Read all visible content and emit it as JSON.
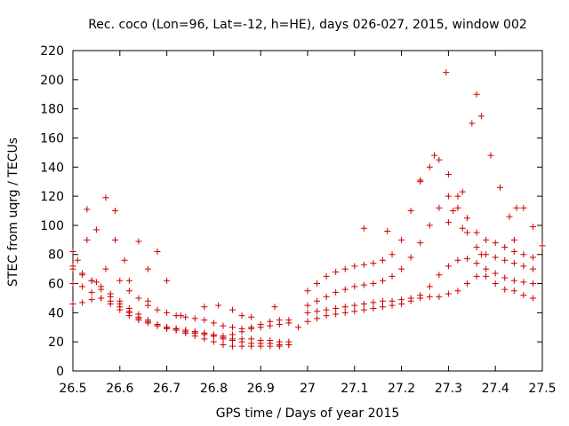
{
  "chart_data": {
    "type": "scatter",
    "title": "Rec. coco (Lon=96, Lat=-12, h=HE), days 026-027, 2015, window 002",
    "xlabel": "GPS time / Days of year 2015",
    "ylabel": "STEC from uqrg / TECUs",
    "xlim": [
      26.5,
      27.5
    ],
    "ylim": [
      0,
      220
    ],
    "xticks": [
      "26.5",
      "26.6",
      "26.7",
      "26.8",
      "26.9",
      "27",
      "27.1",
      "27.2",
      "27.3",
      "27.4",
      "27.5"
    ],
    "yticks": [
      "0",
      "20",
      "40",
      "60",
      "80",
      "100",
      "120",
      "140",
      "160",
      "180",
      "200",
      "220"
    ],
    "grid": false,
    "legend": "none",
    "marker": "plus",
    "color": "#cc0000",
    "points": [
      [
        26.5,
        46
      ],
      [
        26.52,
        47
      ],
      [
        26.54,
        49
      ],
      [
        26.56,
        50
      ],
      [
        26.58,
        48
      ],
      [
        26.6,
        44
      ],
      [
        26.62,
        40
      ],
      [
        26.64,
        36
      ],
      [
        26.66,
        33
      ],
      [
        26.68,
        31
      ],
      [
        26.7,
        29
      ],
      [
        26.72,
        28
      ],
      [
        26.74,
        27
      ],
      [
        26.76,
        26
      ],
      [
        26.78,
        25
      ],
      [
        26.8,
        24
      ],
      [
        26.82,
        24
      ],
      [
        26.84,
        25
      ],
      [
        26.86,
        27
      ],
      [
        26.88,
        29
      ],
      [
        26.9,
        30
      ],
      [
        26.92,
        31
      ],
      [
        26.94,
        32
      ],
      [
        26.96,
        33
      ],
      [
        26.5,
        60
      ],
      [
        26.52,
        58
      ],
      [
        26.54,
        54
      ],
      [
        26.56,
        50
      ],
      [
        26.58,
        46
      ],
      [
        26.6,
        42
      ],
      [
        26.62,
        38
      ],
      [
        26.64,
        35
      ],
      [
        26.66,
        33
      ],
      [
        26.68,
        31
      ],
      [
        26.7,
        30
      ],
      [
        26.72,
        29
      ],
      [
        26.74,
        28
      ],
      [
        26.76,
        27
      ],
      [
        26.78,
        26
      ],
      [
        26.8,
        25
      ],
      [
        26.82,
        23
      ],
      [
        26.84,
        22
      ],
      [
        26.86,
        22
      ],
      [
        26.88,
        22
      ],
      [
        26.9,
        21
      ],
      [
        26.92,
        21
      ],
      [
        26.94,
        20
      ],
      [
        26.96,
        20
      ],
      [
        26.5,
        70
      ],
      [
        26.52,
        66
      ],
      [
        26.54,
        62
      ],
      [
        26.56,
        56
      ],
      [
        26.58,
        51
      ],
      [
        26.6,
        46
      ],
      [
        26.62,
        41
      ],
      [
        26.64,
        37
      ],
      [
        26.66,
        34
      ],
      [
        26.68,
        32
      ],
      [
        26.7,
        30
      ],
      [
        26.72,
        28
      ],
      [
        26.74,
        26
      ],
      [
        26.76,
        24
      ],
      [
        26.78,
        22
      ],
      [
        26.8,
        20
      ],
      [
        26.82,
        18
      ],
      [
        26.84,
        17
      ],
      [
        26.86,
        17
      ],
      [
        26.88,
        17
      ],
      [
        26.9,
        17
      ],
      [
        26.92,
        17
      ],
      [
        26.94,
        17
      ],
      [
        26.96,
        18
      ],
      [
        26.5,
        72
      ],
      [
        26.52,
        67
      ],
      [
        26.54,
        62
      ],
      [
        26.56,
        58
      ],
      [
        26.58,
        53
      ],
      [
        26.6,
        48
      ],
      [
        26.62,
        43
      ],
      [
        26.64,
        39
      ],
      [
        26.66,
        35
      ],
      [
        26.68,
        32
      ],
      [
        26.7,
        30
      ],
      [
        26.72,
        29
      ],
      [
        26.74,
        28
      ],
      [
        26.76,
        27
      ],
      [
        26.78,
        26
      ],
      [
        26.8,
        24
      ],
      [
        26.82,
        22
      ],
      [
        26.84,
        21
      ],
      [
        26.86,
        20
      ],
      [
        26.88,
        19
      ],
      [
        26.9,
        19
      ],
      [
        26.92,
        19
      ],
      [
        26.94,
        18
      ],
      [
        26.96,
        18
      ],
      [
        26.6,
        62
      ],
      [
        26.62,
        55
      ],
      [
        26.64,
        50
      ],
      [
        26.66,
        45
      ],
      [
        26.68,
        42
      ],
      [
        26.7,
        40
      ],
      [
        26.72,
        38
      ],
      [
        26.74,
        37
      ],
      [
        26.76,
        36
      ],
      [
        26.78,
        35
      ],
      [
        26.8,
        33
      ],
      [
        26.82,
        31
      ],
      [
        26.84,
        30
      ],
      [
        26.86,
        29
      ],
      [
        26.88,
        30
      ],
      [
        26.9,
        32
      ],
      [
        26.92,
        34
      ],
      [
        26.94,
        35
      ],
      [
        26.96,
        35
      ],
      [
        26.5,
        82
      ],
      [
        26.53,
        111
      ],
      [
        26.55,
        97
      ],
      [
        26.57,
        119
      ],
      [
        26.59,
        110
      ],
      [
        26.62,
        62
      ],
      [
        26.66,
        48
      ],
      [
        26.68,
        82
      ],
      [
        26.7,
        62
      ],
      [
        26.73,
        38
      ],
      [
        26.78,
        44
      ],
      [
        26.81,
        45
      ],
      [
        26.84,
        42
      ],
      [
        26.86,
        38
      ],
      [
        26.88,
        37
      ],
      [
        26.93,
        44
      ],
      [
        26.98,
        30
      ],
      [
        26.51,
        76
      ],
      [
        26.53,
        90
      ],
      [
        26.55,
        61
      ],
      [
        26.57,
        70
      ],
      [
        26.59,
        90
      ],
      [
        26.61,
        76
      ],
      [
        26.64,
        89
      ],
      [
        26.66,
        70
      ],
      [
        27.0,
        40
      ],
      [
        27.02,
        41
      ],
      [
        27.04,
        42
      ],
      [
        27.06,
        43
      ],
      [
        27.08,
        44
      ],
      [
        27.1,
        45
      ],
      [
        27.12,
        46
      ],
      [
        27.14,
        47
      ],
      [
        27.16,
        48
      ],
      [
        27.18,
        48
      ],
      [
        27.2,
        49
      ],
      [
        27.22,
        50
      ],
      [
        27.24,
        50
      ],
      [
        27.26,
        51
      ],
      [
        27.28,
        51
      ],
      [
        27.3,
        53
      ],
      [
        27.32,
        55
      ],
      [
        27.34,
        60
      ],
      [
        27.36,
        65
      ],
      [
        27.38,
        65
      ],
      [
        27.4,
        60
      ],
      [
        27.42,
        56
      ],
      [
        27.44,
        55
      ],
      [
        27.46,
        52
      ],
      [
        27.48,
        50
      ],
      [
        27.0,
        34
      ],
      [
        27.02,
        36
      ],
      [
        27.04,
        38
      ],
      [
        27.06,
        39
      ],
      [
        27.08,
        40
      ],
      [
        27.1,
        41
      ],
      [
        27.12,
        42
      ],
      [
        27.14,
        43
      ],
      [
        27.16,
        44
      ],
      [
        27.18,
        45
      ],
      [
        27.2,
        46
      ],
      [
        27.22,
        48
      ],
      [
        27.24,
        52
      ],
      [
        27.26,
        58
      ],
      [
        27.28,
        66
      ],
      [
        27.3,
        72
      ],
      [
        27.32,
        76
      ],
      [
        27.34,
        77
      ],
      [
        27.36,
        74
      ],
      [
        27.38,
        70
      ],
      [
        27.4,
        67
      ],
      [
        27.42,
        64
      ],
      [
        27.44,
        62
      ],
      [
        27.46,
        61
      ],
      [
        27.48,
        60
      ],
      [
        27.0,
        45
      ],
      [
        27.02,
        48
      ],
      [
        27.04,
        51
      ],
      [
        27.06,
        54
      ],
      [
        27.08,
        56
      ],
      [
        27.1,
        58
      ],
      [
        27.12,
        59
      ],
      [
        27.14,
        60
      ],
      [
        27.16,
        62
      ],
      [
        27.18,
        65
      ],
      [
        27.2,
        70
      ],
      [
        27.22,
        78
      ],
      [
        27.24,
        88
      ],
      [
        27.26,
        100
      ],
      [
        27.28,
        112
      ],
      [
        27.3,
        120
      ],
      [
        27.32,
        112
      ],
      [
        27.34,
        95
      ],
      [
        27.36,
        85
      ],
      [
        27.38,
        80
      ],
      [
        27.4,
        78
      ],
      [
        27.42,
        76
      ],
      [
        27.44,
        74
      ],
      [
        27.46,
        72
      ],
      [
        27.48,
        70
      ],
      [
        27.0,
        55
      ],
      [
        27.02,
        60
      ],
      [
        27.04,
        65
      ],
      [
        27.06,
        68
      ],
      [
        27.08,
        70
      ],
      [
        27.1,
        72
      ],
      [
        27.12,
        73
      ],
      [
        27.14,
        74
      ],
      [
        27.16,
        76
      ],
      [
        27.18,
        80
      ],
      [
        27.2,
        90
      ],
      [
        27.22,
        110
      ],
      [
        27.24,
        130
      ],
      [
        27.26,
        140
      ],
      [
        27.28,
        145
      ],
      [
        27.3,
        135
      ],
      [
        27.32,
        120
      ],
      [
        27.34,
        105
      ],
      [
        27.36,
        95
      ],
      [
        27.38,
        90
      ],
      [
        27.4,
        88
      ],
      [
        27.42,
        85
      ],
      [
        27.44,
        82
      ],
      [
        27.46,
        80
      ],
      [
        27.48,
        78
      ],
      [
        27.12,
        98
      ],
      [
        27.17,
        96
      ],
      [
        27.24,
        131
      ],
      [
        27.27,
        148
      ],
      [
        27.295,
        205
      ],
      [
        27.31,
        110
      ],
      [
        27.33,
        123
      ],
      [
        27.35,
        170
      ],
      [
        27.36,
        190
      ],
      [
        27.37,
        175
      ],
      [
        27.39,
        148
      ],
      [
        27.41,
        126
      ],
      [
        27.43,
        106
      ],
      [
        27.445,
        112
      ],
      [
        27.46,
        112
      ],
      [
        27.48,
        99
      ],
      [
        27.5,
        86
      ],
      [
        27.44,
        90
      ],
      [
        27.37,
        80
      ],
      [
        27.33,
        98
      ],
      [
        27.3,
        102
      ]
    ]
  }
}
